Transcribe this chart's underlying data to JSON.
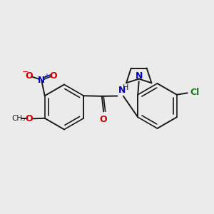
{
  "background_color": "#ebebeb",
  "bond_color": "#1a1a1a",
  "nitrogen_color": "#0000cc",
  "oxygen_color": "#cc0000",
  "chlorine_color": "#1a7a1a",
  "figsize": [
    3.0,
    3.0
  ],
  "dpi": 100,
  "xlim": [
    0,
    10
  ],
  "ylim": [
    0,
    10
  ]
}
